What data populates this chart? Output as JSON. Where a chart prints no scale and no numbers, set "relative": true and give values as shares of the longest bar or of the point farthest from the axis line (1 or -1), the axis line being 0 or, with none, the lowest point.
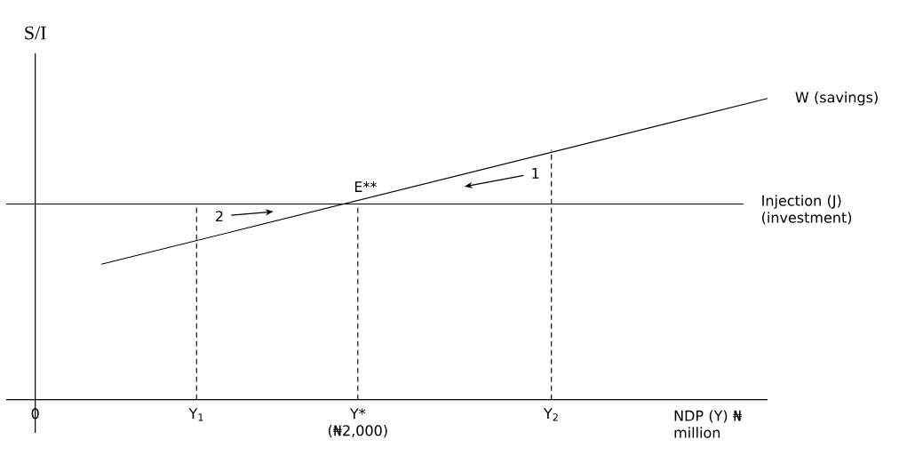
{
  "chart_data": {
    "type": "line",
    "relative": true,
    "xlabel": "NDP (Y) ₦ million",
    "ylabel": "S/I",
    "xlim": [
      -180,
      4540
    ],
    "xticks": [
      0,
      {
        "value": 2000,
        "label": "Y* (₦2,000)"
      }
    ],
    "series": [
      {
        "name": "W (savings)",
        "color": "#000000",
        "x": [
          410,
          4540
        ],
        "values": [
          0.45,
          1
        ]
      },
      {
        "name": "Injection (J) (investment)",
        "color": "#000000",
        "x": [
          -180,
          4390
        ],
        "values": [
          0.65,
          0.65
        ]
      },
      {
        "color": "#000000",
        "line_style": "dashed",
        "x": [
          1000,
          1000
        ],
        "values": [
          0,
          0.65
        ]
      },
      {
        "color": "#000000",
        "line_style": "dashed",
        "x": [
          2000,
          2000
        ],
        "values": [
          0,
          0.65
        ]
      },
      {
        "color": "#000000",
        "line_style": "dashed",
        "x": [
          3200,
          3200
        ],
        "values": [
          0,
          0.83
        ]
      }
    ],
    "annotations": [
      {
        "text": "E**",
        "x": 2000,
        "y": 0.65
      },
      {
        "text": "Y$_{1}$",
        "x": 1000,
        "y": 0
      },
      {
        "text": "Y$_{2}$",
        "x": 3200,
        "y": 0
      },
      "1",
      "2"
    ]
  }
}
